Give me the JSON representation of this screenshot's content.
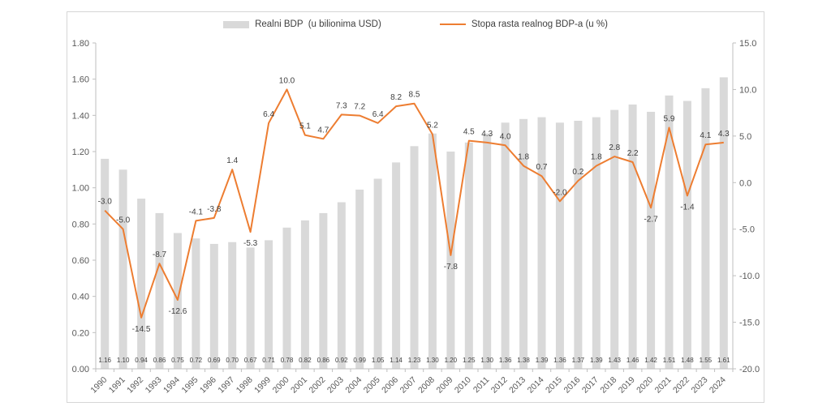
{
  "chart_data": {
    "type": "bar",
    "subtype": "combo-bar-line",
    "title": "",
    "categories": [
      "1990",
      "1991",
      "1992",
      "1993",
      "1994",
      "1995",
      "1996",
      "1997",
      "1998",
      "1999",
      "2000",
      "2001",
      "2002",
      "2003",
      "2004",
      "2005",
      "2006",
      "2007",
      "2008",
      "2009",
      "2010",
      "2011",
      "2012",
      "2013",
      "2014",
      "2015",
      "2016",
      "2017",
      "2018",
      "2019",
      "2020",
      "2021",
      "2022",
      "2023",
      "2024"
    ],
    "series": [
      {
        "name": "Realni BDP  (u bilionima USD)",
        "type": "bar",
        "axis": "left",
        "color": "#d9d9d9",
        "values": [
          1.16,
          1.1,
          0.94,
          0.86,
          0.75,
          0.72,
          0.69,
          0.7,
          0.67,
          0.71,
          0.78,
          0.82,
          0.86,
          0.92,
          0.99,
          1.05,
          1.14,
          1.23,
          1.3,
          1.2,
          1.25,
          1.3,
          1.36,
          1.38,
          1.39,
          1.36,
          1.37,
          1.39,
          1.43,
          1.46,
          1.42,
          1.51,
          1.48,
          1.55,
          1.61
        ]
      },
      {
        "name": "Stopa rasta realnog BDP-a (u %)",
        "type": "line",
        "axis": "right",
        "color": "#ed7d31",
        "values": [
          -3.0,
          -5.0,
          -14.5,
          -8.7,
          -12.6,
          -4.1,
          -3.8,
          1.4,
          -5.3,
          6.4,
          10.0,
          5.1,
          4.7,
          7.3,
          7.2,
          6.4,
          8.2,
          8.5,
          5.2,
          -7.8,
          4.5,
          4.3,
          4.0,
          1.8,
          0.7,
          -2.0,
          0.2,
          1.8,
          2.8,
          2.2,
          -2.7,
          5.9,
          -1.4,
          4.1,
          4.3
        ]
      }
    ],
    "left_axis": {
      "min": 0,
      "max": 1.8,
      "step": 0.2,
      "tick_labels": [
        "0.00",
        "0.20",
        "0.40",
        "0.60",
        "0.80",
        "1.00",
        "1.20",
        "1.40",
        "1.60",
        "1.80"
      ]
    },
    "right_axis": {
      "min": -20,
      "max": 15,
      "step": 5,
      "tick_labels": [
        "-20.0",
        "-15.0",
        "-10.0",
        "-5.0",
        "0.0",
        "5.0",
        "10.0",
        "15.0"
      ]
    },
    "xlabel": "",
    "ylabel": "",
    "grid": false,
    "legend_position": "top",
    "bar_value_labels": [
      "1.16",
      "1.10",
      "0.94",
      "0.86",
      "0.75",
      "0.72",
      "0.69",
      "0.70",
      "0.67",
      "0.71",
      "0.78",
      "0.82",
      "0.86",
      "0.92",
      "0.99",
      "1.05",
      "1.14",
      "1.23",
      "1.30",
      "1.20",
      "1.25",
      "1.30",
      "1.36",
      "1.38",
      "1.39",
      "1.36",
      "1.37",
      "1.39",
      "1.43",
      "1.46",
      "1.42",
      "1.51",
      "1.48",
      "1.55",
      "1.61"
    ],
    "line_value_labels": [
      "-3.0",
      "-5.0",
      "-14.5",
      "-8.7",
      "-12.6",
      "-4.1",
      "-3.8",
      "1.4",
      "-5.3",
      "6.4",
      "10.0",
      "5.1",
      "4.7",
      "7.3",
      "7.2",
      "6.4",
      "8.2",
      "8.5",
      "5.2",
      "-7.8",
      "4.5",
      "4.3",
      "4.0",
      "1.8",
      "0.7",
      "-2.0",
      "0.2",
      "1.8",
      "2.8",
      "2.2",
      "-2.7",
      "5.9",
      "-1.4",
      "4.1",
      "4.3"
    ]
  },
  "colors": {
    "bar_fill": "#d9d9d9",
    "line_stroke": "#ed7d31",
    "axis_line": "#bfbfbf",
    "axis_text": "#595959",
    "data_label_text": "#404040",
    "chart_border": "#d6d6d6",
    "background": "#ffffff"
  }
}
